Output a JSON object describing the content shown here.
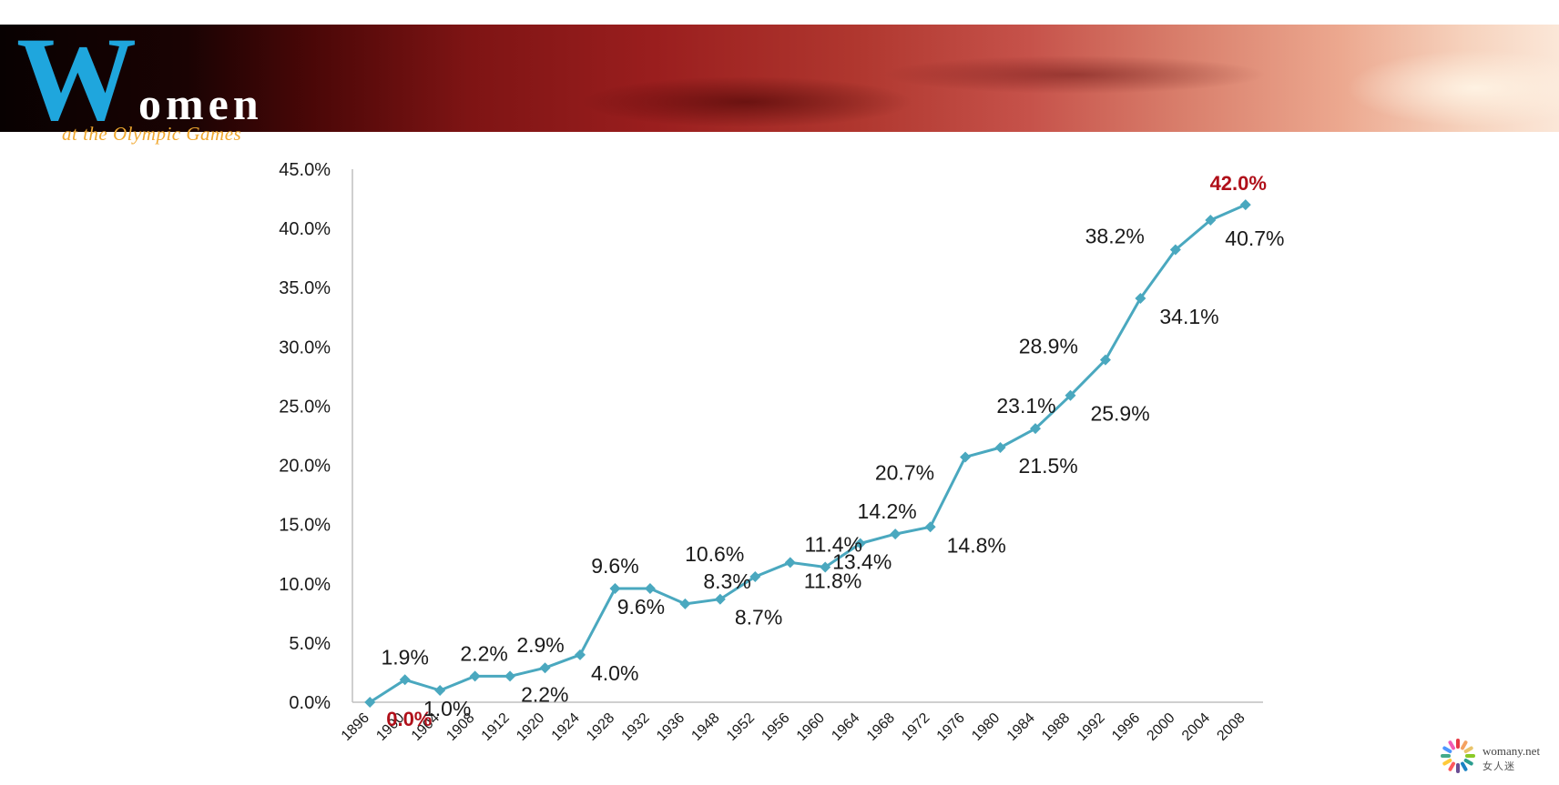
{
  "header": {
    "logo_big_letter": "W",
    "logo_rest": "omen",
    "subtitle": "at the Olympic Games"
  },
  "branding": {
    "site": "womany.net",
    "chinese_name": "女人迷"
  },
  "colors": {
    "line": "#4aa8bf",
    "highlight": "#b0101a",
    "axis": "#bfbfbf",
    "text": "#1a1a1a",
    "logo_blue": "#1fa6dd",
    "logo_orange": "#f0a830"
  },
  "chart_data": {
    "type": "line",
    "title": "",
    "xlabel": "",
    "ylabel": "",
    "ylim": [
      0,
      45
    ],
    "y_ticks": [
      "0.0%",
      "5.0%",
      "10.0%",
      "15.0%",
      "20.0%",
      "25.0%",
      "30.0%",
      "35.0%",
      "40.0%",
      "45.0%"
    ],
    "categories": [
      "1896",
      "1900",
      "1904",
      "1908",
      "1912",
      "1920",
      "1924",
      "1928",
      "1932",
      "1936",
      "1948",
      "1952",
      "1956",
      "1960",
      "1964",
      "1968",
      "1972",
      "1976",
      "1980",
      "1984",
      "1988",
      "1992",
      "1996",
      "2000",
      "2004",
      "2008"
    ],
    "values": [
      0.0,
      1.9,
      1.0,
      2.2,
      2.2,
      2.9,
      4.0,
      9.6,
      9.6,
      8.3,
      8.7,
      10.6,
      11.8,
      11.4,
      13.4,
      14.2,
      14.8,
      20.7,
      21.5,
      23.1,
      25.9,
      28.9,
      34.1,
      38.2,
      40.7,
      42.0
    ],
    "data_labels": [
      "0.0%",
      "1.9%",
      "1.0%",
      "2.2%",
      "2.2%",
      "2.9%",
      "4.0%",
      "9.6%",
      "9.6%",
      "8.3%",
      "8.7%",
      "10.6%",
      "11.8%",
      "11.4%",
      "13.4%",
      "14.2%",
      "14.8%",
      "20.7%",
      "21.5%",
      "23.1%",
      "25.9%",
      "28.9%",
      "34.1%",
      "38.2%",
      "40.7%",
      "42.0%"
    ],
    "highlighted_labels": [
      "0.0%",
      "42.0%"
    ],
    "grid": false,
    "legend": "none",
    "marker": "diamond"
  }
}
